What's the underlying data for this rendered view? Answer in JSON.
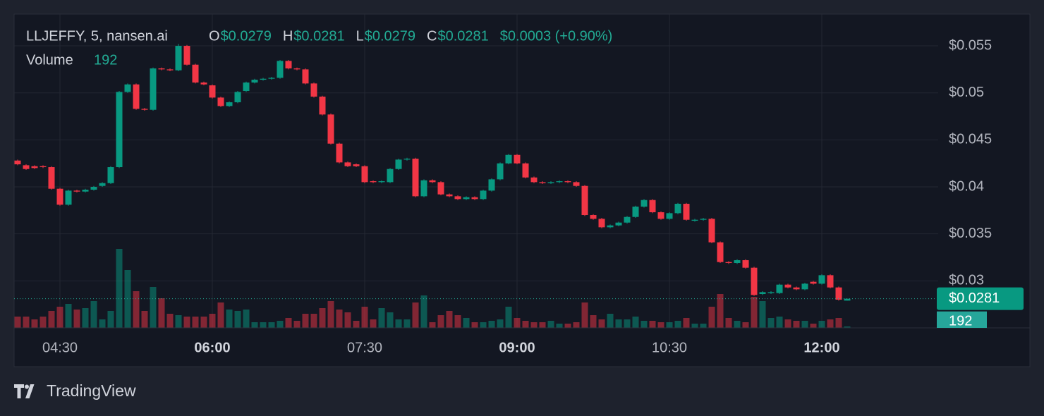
{
  "chart_data": {
    "type": "candlestick",
    "title": "LLJEFFY, 5, nansen.ai",
    "ohlc_legend": [
      {
        "label": "O",
        "value": "$0.0279"
      },
      {
        "label": "H",
        "value": "$0.0281"
      },
      {
        "label": "L",
        "value": "$0.0279"
      },
      {
        "label": "C",
        "value": "$0.0281"
      }
    ],
    "change": "$0.0003 (+0.90%)",
    "categories": [
      null,
      null,
      null,
      null,
      null,
      "04:30",
      null,
      null,
      null,
      null,
      null,
      null,
      null,
      null,
      null,
      null,
      null,
      null,
      null,
      null,
      null,
      null,
      null,
      "06:00",
      null,
      null,
      null,
      null,
      null,
      null,
      null,
      null,
      null,
      null,
      null,
      null,
      null,
      null,
      null,
      null,
      null,
      "07:30",
      null,
      null,
      null,
      null,
      null,
      null,
      null,
      null,
      null,
      null,
      null,
      null,
      null,
      null,
      null,
      null,
      null,
      "09:00",
      null,
      null,
      null,
      null,
      null,
      null,
      null,
      null,
      null,
      null,
      null,
      null,
      null,
      null,
      null,
      null,
      null,
      "10:30",
      null,
      null,
      null,
      null,
      null,
      null,
      null,
      null,
      null,
      null,
      null,
      null,
      null,
      null,
      null,
      null,
      null,
      "12:00",
      null,
      null,
      null
    ],
    "open": [
      0.0428,
      0.0423,
      0.0422,
      0.0422,
      0.0421,
      0.0398,
      0.0381,
      0.0396,
      0.0395,
      0.0397,
      0.0401,
      0.0404,
      0.0421,
      0.0501,
      0.0509,
      0.0483,
      0.0482,
      0.0526,
      0.0525,
      0.0524,
      0.055,
      0.053,
      0.0511,
      0.0508,
      0.0495,
      0.0486,
      0.049,
      0.0502,
      0.0511,
      0.0514,
      0.0515,
      0.0516,
      0.0534,
      0.0526,
      0.0525,
      0.051,
      0.0496,
      0.0477,
      0.0446,
      0.0426,
      0.0424,
      0.0422,
      0.0406,
      0.0405,
      0.0405,
      0.0419,
      0.0429,
      0.043,
      0.039,
      0.0407,
      0.0405,
      0.0392,
      0.039,
      0.0387,
      0.0389,
      0.0387,
      0.0396,
      0.0408,
      0.0425,
      0.0434,
      0.0425,
      0.041,
      0.0405,
      0.0404,
      0.0405,
      0.0406,
      0.0405,
      0.0401,
      0.037,
      0.0366,
      0.0357,
      0.0359,
      0.0362,
      0.0368,
      0.0379,
      0.0386,
      0.0373,
      0.0366,
      0.0372,
      0.0382,
      0.0364,
      0.0365,
      0.0366,
      0.0341,
      0.032,
      0.0319,
      0.0322,
      0.0314,
      0.0286,
      0.0287,
      0.0287,
      0.0296,
      0.0293,
      0.0291,
      0.0299,
      0.0297,
      0.0306,
      0.0293,
      0.0279
    ],
    "high": [
      0.0429,
      0.0424,
      0.0423,
      0.0423,
      0.0422,
      0.0399,
      0.0397,
      0.0397,
      0.0398,
      0.0401,
      0.0405,
      0.0422,
      0.0502,
      0.051,
      0.051,
      0.0484,
      0.0527,
      0.0527,
      0.0526,
      0.0552,
      0.0551,
      0.0531,
      0.0512,
      0.0509,
      0.0496,
      0.0491,
      0.0502,
      0.0512,
      0.0515,
      0.0516,
      0.0517,
      0.0535,
      0.0535,
      0.0527,
      0.0526,
      0.0511,
      0.0497,
      0.0478,
      0.0447,
      0.0427,
      0.0425,
      0.0423,
      0.0407,
      0.0407,
      0.042,
      0.043,
      0.0431,
      0.0431,
      0.0408,
      0.0408,
      0.0406,
      0.0393,
      0.0391,
      0.039,
      0.039,
      0.0397,
      0.0409,
      0.0426,
      0.0435,
      0.0435,
      0.0426,
      0.0411,
      0.0406,
      0.0406,
      0.0407,
      0.0407,
      0.0406,
      0.0402,
      0.0371,
      0.0367,
      0.036,
      0.0363,
      0.0369,
      0.038,
      0.0387,
      0.0387,
      0.0374,
      0.0373,
      0.0383,
      0.0383,
      0.0366,
      0.0367,
      0.0367,
      0.0342,
      0.0321,
      0.0323,
      0.0323,
      0.0315,
      0.0289,
      0.0289,
      0.0297,
      0.0297,
      0.0294,
      0.0298,
      0.03,
      0.0307,
      0.0307,
      0.0294,
      0.0281
    ],
    "low": [
      0.0423,
      0.0418,
      0.0419,
      0.042,
      0.0397,
      0.038,
      0.038,
      0.0394,
      0.0394,
      0.0396,
      0.04,
      0.0403,
      0.042,
      0.05,
      0.0482,
      0.0481,
      0.0481,
      0.0524,
      0.0523,
      0.0523,
      0.0529,
      0.051,
      0.0508,
      0.0494,
      0.0485,
      0.0485,
      0.0489,
      0.0501,
      0.051,
      0.0513,
      0.0514,
      0.0515,
      0.0525,
      0.0524,
      0.0509,
      0.0495,
      0.0476,
      0.0445,
      0.0425,
      0.0421,
      0.0421,
      0.0404,
      0.0404,
      0.0404,
      0.0404,
      0.0418,
      0.0428,
      0.0389,
      0.0389,
      0.0404,
      0.0391,
      0.0389,
      0.0386,
      0.0386,
      0.0386,
      0.0386,
      0.0395,
      0.0407,
      0.0424,
      0.0424,
      0.0409,
      0.0404,
      0.0403,
      0.0403,
      0.0404,
      0.0404,
      0.04,
      0.0369,
      0.0365,
      0.0356,
      0.0356,
      0.0358,
      0.0361,
      0.0367,
      0.0378,
      0.0372,
      0.0365,
      0.0365,
      0.0371,
      0.0364,
      0.0363,
      0.0364,
      0.034,
      0.0319,
      0.0318,
      0.0318,
      0.0313,
      0.0284,
      0.0285,
      0.0286,
      0.0286,
      0.0292,
      0.029,
      0.029,
      0.0296,
      0.0296,
      0.0292,
      0.0279,
      0.0279
    ],
    "close": [
      0.0424,
      0.0419,
      0.042,
      0.0421,
      0.0398,
      0.0381,
      0.0396,
      0.0395,
      0.0397,
      0.04,
      0.0404,
      0.0421,
      0.0501,
      0.0509,
      0.0483,
      0.0482,
      0.0526,
      0.0525,
      0.0524,
      0.055,
      0.053,
      0.0511,
      0.0509,
      0.0495,
      0.0486,
      0.049,
      0.0501,
      0.0511,
      0.0514,
      0.0515,
      0.0516,
      0.0534,
      0.0526,
      0.0525,
      0.051,
      0.0496,
      0.0477,
      0.0446,
      0.0426,
      0.0422,
      0.0422,
      0.0405,
      0.0405,
      0.0406,
      0.0419,
      0.0429,
      0.043,
      0.039,
      0.0407,
      0.0405,
      0.0392,
      0.039,
      0.0387,
      0.0389,
      0.0387,
      0.0396,
      0.0408,
      0.0425,
      0.0434,
      0.0425,
      0.041,
      0.0405,
      0.0404,
      0.0405,
      0.0406,
      0.0405,
      0.0401,
      0.037,
      0.0366,
      0.0357,
      0.0359,
      0.0362,
      0.0368,
      0.0379,
      0.0386,
      0.0373,
      0.0366,
      0.0372,
      0.0382,
      0.0365,
      0.0365,
      0.0366,
      0.0341,
      0.032,
      0.0319,
      0.0322,
      0.0314,
      0.0285,
      0.0288,
      0.0288,
      0.0296,
      0.0293,
      0.0291,
      0.0297,
      0.0297,
      0.0306,
      0.0293,
      0.028,
      0.0281
    ],
    "up_color": "#089981",
    "down_color": "#f23645",
    "volume": {
      "name": "Volume",
      "values": [
        1536,
        1536,
        1152,
        1536,
        2304,
        2880,
        3264,
        2496,
        2688,
        3648,
        1152,
        2304,
        10752,
        7872,
        4992,
        2304,
        5568,
        4032,
        1920,
        1728,
        1536,
        1536,
        1536,
        1920,
        3456,
        2496,
        2304,
        2496,
        768,
        768,
        768,
        960,
        1344,
        960,
        1920,
        1920,
        2688,
        3648,
        2496,
        2112,
        960,
        2880,
        1152,
        2688,
        2112,
        1152,
        1152,
        3456,
        4416,
        768,
        1728,
        2304,
        1728,
        1344,
        768,
        768,
        960,
        1152,
        2880,
        1344,
        960,
        768,
        768,
        960,
        576,
        576,
        768,
        3456,
        1728,
        1152,
        1920,
        1152,
        1152,
        1536,
        960,
        960,
        768,
        768,
        960,
        1344,
        576,
        576,
        2880,
        4608,
        1344,
        960,
        768,
        4224,
        3648,
        1344,
        1536,
        1152,
        960,
        960,
        576,
        960,
        1152,
        1344,
        192
      ]
    },
    "ylim": [
      0.025,
      0.05838
    ],
    "yticks": [
      {
        "value": 0.03,
        "label": "$0.03"
      },
      {
        "value": 0.035,
        "label": "$0.035"
      },
      {
        "value": 0.04,
        "label": "$0.04"
      },
      {
        "value": 0.045,
        "label": "$0.045"
      },
      {
        "value": 0.05,
        "label": "$0.05"
      },
      {
        "value": 0.055,
        "label": "$0.055"
      }
    ],
    "last_price_label": "$0.0281",
    "grid": true,
    "brand": "TradingView"
  }
}
